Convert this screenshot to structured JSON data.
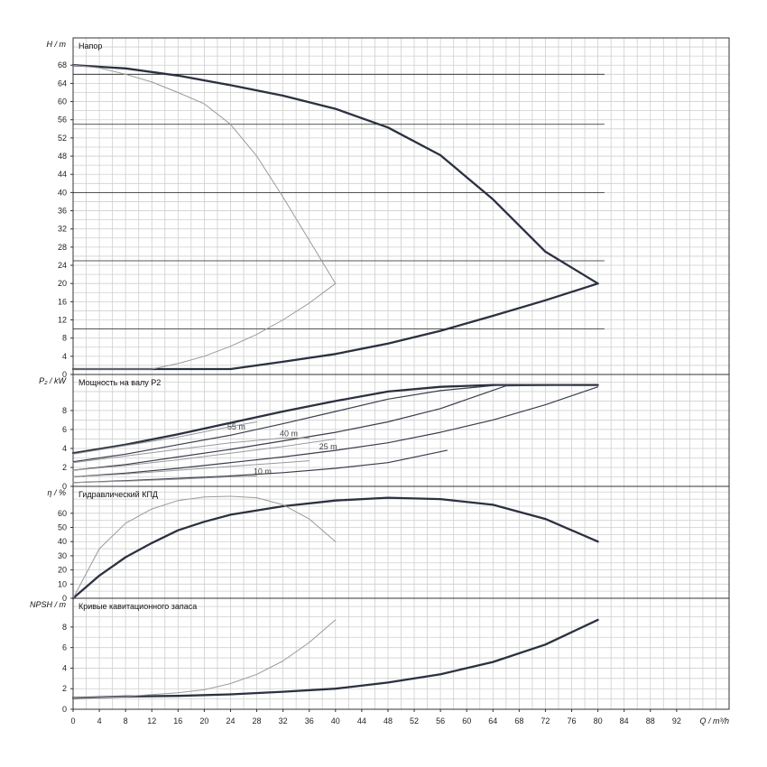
{
  "chart_data": {
    "type": "line",
    "x_axis": {
      "label": "Q / m³/h",
      "range": [
        0,
        100
      ],
      "ticks": [
        0,
        4,
        8,
        12,
        16,
        20,
        24,
        28,
        32,
        36,
        40,
        44,
        48,
        52,
        56,
        60,
        64,
        68,
        72,
        76,
        80,
        84,
        88,
        92
      ]
    },
    "grid": true,
    "panels": [
      {
        "id": "head",
        "title": "Напор",
        "ylabel": "H / m",
        "ylim": [
          0,
          74
        ],
        "ticks": [
          0,
          4,
          8,
          12,
          16,
          20,
          24,
          28,
          32,
          36,
          40,
          44,
          48,
          52,
          56,
          60,
          64,
          68
        ],
        "hlines": [
          10,
          25,
          40,
          55,
          66
        ],
        "series": [
          {
            "style": "main",
            "points": [
              [
                0,
                68
              ],
              [
                8,
                67.3
              ],
              [
                16,
                65.7
              ],
              [
                24,
                63.6
              ],
              [
                32,
                61.3
              ],
              [
                40,
                58.4
              ],
              [
                48,
                54.3
              ],
              [
                56,
                48.2
              ],
              [
                64,
                38.5
              ],
              [
                72,
                27.0
              ],
              [
                80,
                20
              ]
            ]
          },
          {
            "style": "main",
            "points": [
              [
                0,
                1.2
              ],
              [
                24,
                1.2
              ],
              [
                32,
                2.8
              ],
              [
                40,
                4.5
              ],
              [
                48,
                6.8
              ],
              [
                56,
                9.6
              ],
              [
                64,
                12.9
              ],
              [
                72,
                16.3
              ],
              [
                80,
                20
              ]
            ]
          },
          {
            "style": "light",
            "points": [
              [
                0,
                68
              ],
              [
                4,
                67.4
              ],
              [
                8,
                66
              ],
              [
                12,
                64.3
              ],
              [
                16,
                62
              ],
              [
                20,
                59.5
              ],
              [
                24,
                55
              ],
              [
                28,
                48
              ],
              [
                32,
                39
              ],
              [
                36,
                29.5
              ],
              [
                40,
                20
              ]
            ]
          },
          {
            "style": "light",
            "points": [
              [
                0,
                1.2
              ],
              [
                12,
                1.2
              ],
              [
                16,
                2.4
              ],
              [
                20,
                4
              ],
              [
                24,
                6.2
              ],
              [
                28,
                8.8
              ],
              [
                32,
                12
              ],
              [
                36,
                15.7
              ],
              [
                40,
                20
              ]
            ]
          }
        ]
      },
      {
        "id": "power",
        "title": "Мощность на валу P2",
        "ylabel": "P₂ / kW",
        "ylim": [
          0,
          11.8
        ],
        "ticks": [
          0,
          2,
          4,
          6,
          8
        ],
        "series": [
          {
            "style": "main",
            "points": [
              [
                0,
                3.5
              ],
              [
                8,
                4.4
              ],
              [
                16,
                5.5
              ],
              [
                24,
                6.7
              ],
              [
                32,
                7.9
              ],
              [
                40,
                9.0
              ],
              [
                48,
                10.0
              ],
              [
                56,
                10.5
              ],
              [
                64,
                10.7
              ],
              [
                72,
                10.7
              ],
              [
                80,
                10.7
              ]
            ]
          },
          {
            "style": "thin",
            "points": [
              [
                0,
                2.6
              ],
              [
                8,
                3.4
              ],
              [
                16,
                4.4
              ],
              [
                24,
                5.4
              ],
              [
                32,
                6.6
              ],
              [
                40,
                7.9
              ],
              [
                48,
                9.2
              ],
              [
                56,
                10.1
              ],
              [
                65,
                10.7
              ],
              [
                76,
                10.7
              ]
            ]
          },
          {
            "style": "thin",
            "points": [
              [
                0,
                1.7
              ],
              [
                8,
                2.3
              ],
              [
                16,
                3.1
              ],
              [
                24,
                3.9
              ],
              [
                32,
                4.8
              ],
              [
                40,
                5.7
              ],
              [
                48,
                6.8
              ],
              [
                56,
                8.2
              ],
              [
                66,
                10.6
              ],
              [
                76,
                10.7
              ]
            ]
          },
          {
            "style": "thin",
            "points": [
              [
                0,
                1.0
              ],
              [
                8,
                1.4
              ],
              [
                16,
                1.9
              ],
              [
                24,
                2.5
              ],
              [
                32,
                3.1
              ],
              [
                40,
                3.8
              ],
              [
                48,
                4.6
              ],
              [
                56,
                5.7
              ],
              [
                64,
                7.0
              ],
              [
                72,
                8.6
              ],
              [
                80,
                10.5
              ]
            ]
          },
          {
            "style": "thin",
            "points": [
              [
                0,
                0.4
              ],
              [
                8,
                0.6
              ],
              [
                16,
                0.85
              ],
              [
                24,
                1.1
              ],
              [
                32,
                1.45
              ],
              [
                40,
                1.9
              ],
              [
                48,
                2.5
              ],
              [
                57,
                3.8
              ]
            ]
          },
          {
            "style": "light",
            "points": [
              [
                0,
                3.4
              ],
              [
                8,
                4.3
              ],
              [
                16,
                5.2
              ],
              [
                24,
                6.3
              ],
              [
                28,
                6.8
              ]
            ]
          },
          {
            "style": "light",
            "points": [
              [
                0,
                2.5
              ],
              [
                8,
                3.2
              ],
              [
                16,
                3.9
              ],
              [
                24,
                4.6
              ],
              [
                32,
                5.1
              ],
              [
                36,
                5.1
              ]
            ]
          },
          {
            "style": "light",
            "points": [
              [
                0,
                1.7
              ],
              [
                8,
                2.2
              ],
              [
                16,
                2.8
              ],
              [
                24,
                3.5
              ],
              [
                32,
                4.2
              ],
              [
                40,
                5.0
              ]
            ]
          },
          {
            "style": "light",
            "points": [
              [
                0,
                1.0
              ],
              [
                8,
                1.3
              ],
              [
                16,
                1.7
              ],
              [
                24,
                2.1
              ],
              [
                32,
                2.5
              ],
              [
                36,
                2.7
              ]
            ]
          },
          {
            "style": "light",
            "points": [
              [
                0,
                0.4
              ],
              [
                8,
                0.55
              ],
              [
                16,
                0.75
              ],
              [
                24,
                1.0
              ],
              [
                28,
                1.1
              ]
            ]
          }
        ],
        "labels": [
          {
            "text": "55 m",
            "x": 23.5,
            "y": 6.0
          },
          {
            "text": "40 m",
            "x": 31.5,
            "y": 5.3
          },
          {
            "text": "25 m",
            "x": 37.5,
            "y": 3.9
          },
          {
            "text": "10 m",
            "x": 27.5,
            "y": 1.3
          }
        ]
      },
      {
        "id": "efficiency",
        "title": "Гидравлический КПД",
        "ylabel": "η / %",
        "ylim": [
          0,
          79
        ],
        "ticks": [
          0,
          10,
          20,
          30,
          40,
          50,
          60
        ],
        "series": [
          {
            "style": "main",
            "points": [
              [
                0,
                0
              ],
              [
                4,
                16
              ],
              [
                8,
                29
              ],
              [
                12,
                39
              ],
              [
                16,
                48
              ],
              [
                20,
                54
              ],
              [
                24,
                59
              ],
              [
                32,
                65
              ],
              [
                40,
                69
              ],
              [
                48,
                71
              ],
              [
                56,
                70
              ],
              [
                64,
                66
              ],
              [
                72,
                56
              ],
              [
                80,
                40
              ]
            ]
          },
          {
            "style": "light",
            "points": [
              [
                0,
                0
              ],
              [
                4,
                35
              ],
              [
                8,
                53
              ],
              [
                12,
                63
              ],
              [
                16,
                69
              ],
              [
                20,
                71.5
              ],
              [
                24,
                72
              ],
              [
                28,
                71
              ],
              [
                32,
                66
              ],
              [
                36,
                56
              ],
              [
                40,
                40
              ]
            ]
          }
        ]
      },
      {
        "id": "npsh",
        "title": "Кривые кавитационного запаса",
        "ylabel": "NPSH / m",
        "ylim": [
          0,
          10.8
        ],
        "ticks": [
          0,
          2,
          4,
          6,
          8
        ],
        "series": [
          {
            "style": "main",
            "points": [
              [
                0,
                1.1
              ],
              [
                8,
                1.25
              ],
              [
                16,
                1.3
              ],
              [
                24,
                1.45
              ],
              [
                32,
                1.7
              ],
              [
                40,
                2.0
              ],
              [
                48,
                2.6
              ],
              [
                56,
                3.4
              ],
              [
                64,
                4.6
              ],
              [
                72,
                6.3
              ],
              [
                80,
                8.7
              ]
            ]
          },
          {
            "style": "light",
            "points": [
              [
                0,
                1.1
              ],
              [
                8,
                1.25
              ],
              [
                16,
                1.6
              ],
              [
                20,
                1.9
              ],
              [
                24,
                2.5
              ],
              [
                28,
                3.4
              ],
              [
                32,
                4.7
              ],
              [
                36,
                6.5
              ],
              [
                40,
                8.7
              ]
            ]
          }
        ]
      }
    ]
  }
}
